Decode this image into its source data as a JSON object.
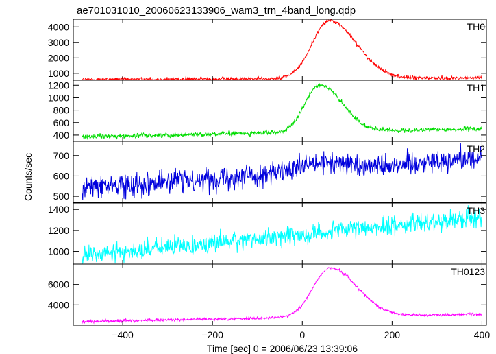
{
  "chart_data": {
    "type": "line",
    "title": "ae701031010_20060623133906_wam3_trn_4band_long.qdp",
    "ylabel": "Counts/sec",
    "xlabel": "Time [sec] 0 = 2006/06/23 13:39:06",
    "xlim": [
      -510,
      410
    ],
    "xticks": [
      -400,
      -200,
      0,
      200,
      400
    ],
    "panels": [
      {
        "name": "TH0",
        "color": "#ff0000",
        "ylim": [
          550,
          4500
        ],
        "yticks": [
          1000,
          2000,
          3000,
          4000
        ],
        "base_start": 600,
        "base_end": 700,
        "peak": 3750,
        "peak_time": 60,
        "rise": 38,
        "decay": 60,
        "noise": 60,
        "x": [
          -490,
          -200,
          -50,
          0,
          30,
          60,
          100,
          150,
          200,
          300,
          400
        ],
        "y": [
          600,
          670,
          800,
          1900,
          3300,
          4300,
          3500,
          1900,
          1000,
          750,
          700
        ]
      },
      {
        "name": "TH1",
        "color": "#00dd00",
        "ylim": [
          300,
          1280
        ],
        "yticks": [
          400,
          600,
          800,
          1000,
          1200
        ],
        "base_start": 375,
        "base_end": 500,
        "peak": 760,
        "peak_time": 38,
        "rise": 32,
        "decay": 50,
        "noise": 18,
        "x": [
          -490,
          -200,
          -50,
          0,
          40,
          80,
          120,
          200,
          300,
          400
        ],
        "y": [
          375,
          430,
          520,
          850,
          1180,
          950,
          650,
          520,
          500,
          500
        ]
      },
      {
        "name": "TH2",
        "color": "#0000dd",
        "ylim": [
          470,
          770
        ],
        "yticks": [
          500,
          600,
          700
        ],
        "base_start": 540,
        "base_end": 690,
        "peak": 30,
        "peak_time": 40,
        "rise": 40,
        "decay": 60,
        "noise": 28,
        "x": [
          -490,
          -200,
          0,
          200,
          400
        ],
        "y": [
          540,
          580,
          650,
          680,
          695
        ]
      },
      {
        "name": "TH3",
        "color": "#00ffff",
        "ylim": [
          880,
          1460
        ],
        "yticks": [
          1000,
          1200,
          1400
        ],
        "base_start": 960,
        "base_end": 1330,
        "peak": 0,
        "peak_time": 0,
        "rise": 40,
        "decay": 60,
        "noise": 45,
        "x": [
          -490,
          -200,
          0,
          200,
          400
        ],
        "y": [
          960,
          1040,
          1130,
          1260,
          1330
        ]
      },
      {
        "name": "TH0123",
        "color": "#ff00ff",
        "ylim": [
          2000,
          8000
        ],
        "yticks": [
          4000,
          6000
        ],
        "base_start": 2350,
        "base_end": 3100,
        "peak": 4800,
        "peak_time": 62,
        "rise": 38,
        "decay": 60,
        "noise": 70,
        "x": [
          -490,
          -200,
          -50,
          0,
          60,
          100,
          150,
          200,
          300,
          400
        ],
        "y": [
          2350,
          2600,
          2900,
          5000,
          7600,
          6300,
          4200,
          3400,
          3150,
          3100
        ]
      }
    ],
    "grid": false,
    "legend": "none"
  }
}
